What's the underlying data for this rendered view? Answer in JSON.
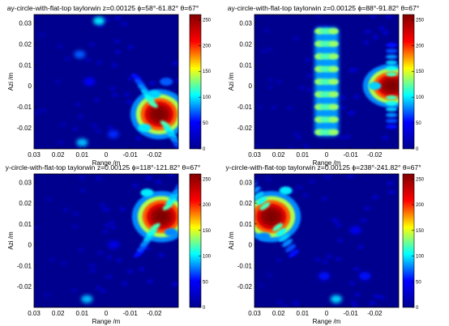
{
  "colors": {
    "colormap": [
      "#00008f",
      "#0000ff",
      "#00ffff",
      "#ffff00",
      "#ff0000",
      "#800000"
    ],
    "background": "#00008f"
  },
  "chart_data": [
    {
      "type": "heatmap",
      "title": "ay-circle-with-flat-top  taylorwin  z=0.00125  ϕ=58°-61.82°  θ=67°",
      "xlabel": "Range /m",
      "ylabel": "Azi /m",
      "xlim": [
        0.03,
        -0.03
      ],
      "ylim": [
        -0.03,
        0.034
      ],
      "x_ticks": [
        "0.03",
        "0.02",
        "0.01",
        "0",
        "-0.01",
        "-0.02"
      ],
      "y_ticks": [
        "0.03",
        "0.02",
        "0.01",
        "0",
        "-0.01",
        "-0.02"
      ],
      "colorbar": {
        "range": [
          0,
          260
        ],
        "ticks": [
          "250",
          "200",
          "150",
          "100",
          "50",
          "0"
        ]
      },
      "features": [
        {
          "kind": "peak",
          "x": -0.022,
          "y": -0.0135,
          "rx": 0.0032,
          "ry": 0.0032,
          "value": 255
        },
        {
          "kind": "fringe",
          "x": -0.02,
          "y": -0.004,
          "value": 95
        },
        {
          "kind": "fringe",
          "x": -0.016,
          "y": -0.02,
          "value": 100
        },
        {
          "kind": "fringe",
          "x": -0.025,
          "y": 0.002,
          "value": 70
        },
        {
          "kind": "spot",
          "x": 0.003,
          "y": 0.031,
          "value": 100
        },
        {
          "kind": "spot",
          "x": 0.011,
          "y": 0.015,
          "value": 70
        },
        {
          "kind": "spot",
          "x": 0.01,
          "y": -0.027,
          "value": 90
        },
        {
          "kind": "spot",
          "x": -0.003,
          "y": -0.023,
          "value": 60
        },
        {
          "kind": "spot",
          "x": 0.007,
          "y": 0.002,
          "value": 50
        }
      ]
    },
    {
      "type": "heatmap",
      "title": "ay-circle-with-flat-top  taylorwin  z=0.00125  ϕ=88°-91.82°  θ=67°",
      "xlabel": "Range /m",
      "ylabel": "Azi /m",
      "xlim": [
        0.03,
        -0.03
      ],
      "ylim": [
        -0.03,
        0.034
      ],
      "x_ticks": [
        "0.03",
        "0.02",
        "0.01",
        "0",
        "-0.01",
        "-0.02"
      ],
      "y_ticks": [
        "0.03",
        "0.02",
        "0.01",
        "0",
        "-0.01",
        "-0.02"
      ],
      "colorbar": {
        "range": [
          0,
          260
        ],
        "ticks": [
          "250",
          "200",
          "150",
          "100",
          "50",
          "0"
        ]
      },
      "features": [
        {
          "kind": "band",
          "x0": 0.005,
          "x1": -0.005,
          "y0": -0.024,
          "y1": 0.028,
          "value": 110
        },
        {
          "kind": "peak",
          "x": -0.027,
          "y": 0.0,
          "rx": 0.0032,
          "ry": 0.0028,
          "value": 255
        },
        {
          "kind": "fringe",
          "x": -0.02,
          "y": 0.0,
          "value": 95
        }
      ]
    },
    {
      "type": "heatmap",
      "title": "y-circle-with-flat-top  taylorwin  z=0.00125  ϕ=118°-121.82°  θ=67°",
      "xlabel": "Range /m",
      "ylabel": "Azi /m",
      "xlim": [
        0.03,
        -0.03
      ],
      "ylim": [
        -0.03,
        0.034
      ],
      "x_ticks": [
        "0.03",
        "0.02",
        "0.01",
        "0",
        "-0.01",
        "-0.02"
      ],
      "y_ticks": [
        "0.03",
        "0.02",
        "0.01",
        "0",
        "-0.01",
        "-0.02"
      ],
      "colorbar": {
        "range": [
          0,
          260
        ],
        "ticks": [
          "250",
          "200",
          "150",
          "100",
          "50",
          "0"
        ]
      },
      "features": [
        {
          "kind": "peak",
          "x": -0.023,
          "y": 0.0135,
          "rx": 0.0033,
          "ry": 0.0033,
          "value": 255
        },
        {
          "kind": "fringe",
          "x": -0.017,
          "y": 0.025,
          "value": 100
        },
        {
          "kind": "fringe",
          "x": -0.027,
          "y": 0.006,
          "value": 80
        },
        {
          "kind": "spot",
          "x": 0.008,
          "y": -0.026,
          "value": 90
        },
        {
          "kind": "spot",
          "x": -0.003,
          "y": 0.0,
          "value": 40
        }
      ]
    },
    {
      "type": "heatmap",
      "title": "y-circle-with-flat-top  taylorwin  z=0.00125  ϕ=238°-241.82°  θ=67°",
      "xlabel": "Range /m",
      "ylabel": "Azi /m",
      "xlim": [
        0.03,
        -0.03
      ],
      "ylim": [
        -0.03,
        0.034
      ],
      "x_ticks": [
        "0.03",
        "0.02",
        "0.01",
        "0",
        "-0.01",
        "-0.02"
      ],
      "y_ticks": [
        "0.03",
        "0.02",
        "0.01",
        "0",
        "-0.01",
        "-0.02"
      ],
      "colorbar": {
        "range": [
          0,
          260
        ],
        "ticks": [
          "250",
          "200",
          "150",
          "100",
          "50",
          "0"
        ]
      },
      "features": [
        {
          "kind": "peak",
          "x": 0.023,
          "y": 0.0135,
          "rx": 0.0033,
          "ry": 0.0033,
          "value": 255
        },
        {
          "kind": "fringe",
          "x": 0.017,
          "y": 0.026,
          "value": 100
        },
        {
          "kind": "fringe",
          "x": 0.026,
          "y": 0.004,
          "value": 80
        },
        {
          "kind": "spot",
          "x": -0.004,
          "y": -0.026,
          "value": 95
        },
        {
          "kind": "spot",
          "x": 0.001,
          "y": -0.015,
          "value": 55
        },
        {
          "kind": "spot",
          "x": -0.016,
          "y": -0.015,
          "value": 55
        },
        {
          "kind": "spot",
          "x": -0.012,
          "y": 0.007,
          "value": 45
        }
      ]
    }
  ]
}
